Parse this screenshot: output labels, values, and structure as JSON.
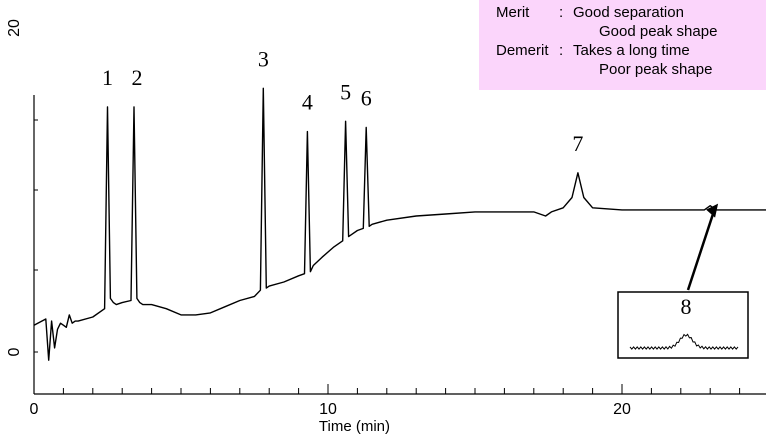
{
  "chart_data": {
    "type": "line",
    "xlabel": "Time (min)",
    "ylabel": "",
    "xlim": [
      0,
      25
    ],
    "x_ticks": [
      0,
      10,
      20
    ],
    "y_tick_labels": [
      "0",
      "",
      "20"
    ],
    "grid": false,
    "series": [
      {
        "x": [
          0,
          0.4,
          0.5,
          0.6,
          0.7,
          0.8,
          0.9,
          1.0,
          1.1,
          1.2,
          1.3,
          1.4,
          1.5,
          2.0,
          2.4,
          2.5,
          2.6,
          2.7,
          2.8,
          3.0,
          3.3,
          3.4,
          3.5,
          3.6,
          3.7,
          4.0,
          4.5,
          5.0,
          5.5,
          6.0,
          6.5,
          7.0,
          7.5,
          7.7,
          7.8,
          7.9,
          8.0,
          8.5,
          9.0,
          9.2,
          9.3,
          9.4,
          9.5,
          9.8,
          10.2,
          10.5,
          10.6,
          10.7,
          10.8,
          11.0,
          11.2,
          11.3,
          11.4,
          11.5,
          12.0,
          13.0,
          14.0,
          15.0,
          16.0,
          17.0,
          17.4,
          17.6,
          18.0,
          18.3,
          18.5,
          18.7,
          19.0,
          20.0,
          21.0,
          22.0,
          22.8,
          23.0,
          23.2,
          23.4,
          24.0,
          25.0
        ],
        "y": [
          1.3,
          1.6,
          -0.4,
          1.5,
          0.2,
          1.1,
          1.4,
          1.3,
          1.2,
          1.8,
          1.4,
          1.5,
          1.5,
          1.7,
          2.1,
          11.9,
          2.6,
          2.4,
          2.3,
          2.4,
          2.5,
          11.9,
          2.6,
          2.4,
          2.3,
          2.3,
          2.1,
          1.8,
          1.8,
          1.9,
          2.2,
          2.5,
          2.7,
          3.0,
          12.8,
          3.1,
          3.2,
          3.4,
          3.7,
          3.8,
          10.7,
          3.9,
          4.2,
          4.6,
          5.1,
          5.4,
          11.2,
          5.6,
          5.7,
          5.9,
          6.0,
          10.9,
          6.1,
          6.2,
          6.4,
          6.6,
          6.7,
          6.8,
          6.8,
          6.8,
          6.6,
          6.8,
          7.0,
          7.5,
          8.7,
          7.5,
          7.0,
          6.9,
          6.9,
          6.9,
          6.9,
          7.1,
          6.9,
          6.9,
          6.9,
          6.9
        ]
      }
    ],
    "peak_labels": [
      {
        "label": "1",
        "x": 2.5
      },
      {
        "label": "2",
        "x": 3.4
      },
      {
        "label": "3",
        "x": 7.8
      },
      {
        "label": "4",
        "x": 9.3
      },
      {
        "label": "5",
        "x": 10.6
      },
      {
        "label": "6",
        "x": 11.3
      },
      {
        "label": "7",
        "x": 18.5
      }
    ],
    "inset": {
      "label": "8",
      "x": 23.2
    }
  },
  "note": {
    "merit_label": "Merit",
    "colon": ":",
    "merit_1": "Good separation",
    "merit_2": "Good peak shape",
    "demerit_label": "Demerit",
    "demerit_1": "Takes a long time",
    "demerit_2": "Poor peak shape"
  }
}
